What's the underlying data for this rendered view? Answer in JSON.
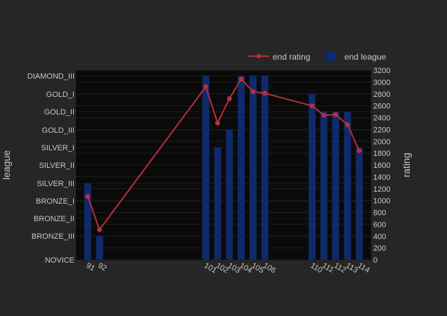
{
  "chart_data": {
    "type": "bar+line",
    "x": [
      91,
      92,
      101,
      102,
      103,
      104,
      105,
      106,
      110,
      111,
      112,
      113,
      114
    ],
    "series": [
      {
        "name": "end rating",
        "kind": "line",
        "axis": "right",
        "values": [
          1070,
          510,
          2920,
          2310,
          2720,
          3050,
          2840,
          2810,
          2600,
          2440,
          2450,
          2280,
          1840
        ]
      },
      {
        "name": "end league",
        "kind": "bar",
        "axis": "left",
        "values": [
          "SILVER_III",
          "BRONZE_III",
          "DIAMOND_III",
          "SILVER_I",
          "GOLD_III",
          "DIAMOND_III",
          "DIAMOND_III",
          "DIAMOND_III",
          "GOLD_I",
          "GOLD_II",
          "GOLD_II",
          "GOLD_II",
          "SILVER_I"
        ]
      }
    ],
    "left_axis": {
      "label": "league",
      "categories": [
        "NOVICE",
        "BRONZE_III",
        "BRONZE_II",
        "BRONZE_I",
        "SILVER_III",
        "SILVER_II",
        "SILVER_I",
        "GOLD_III",
        "GOLD_II",
        "GOLD_I",
        "DIAMOND_III"
      ]
    },
    "right_axis": {
      "label": "rating",
      "range": [
        0,
        3200
      ],
      "ticks": [
        0,
        200,
        400,
        600,
        800,
        1000,
        1200,
        1400,
        1600,
        1800,
        2000,
        2200,
        2400,
        2600,
        2800,
        3000,
        3200
      ]
    },
    "x_range": [
      90,
      115
    ],
    "legend": {
      "placement": "top-right"
    },
    "grid": true,
    "colors": {
      "line": "#b5303a",
      "bar": "#0e2a6b",
      "plot_bg": "#0a0a0a",
      "paper_bg": "#262626"
    }
  }
}
